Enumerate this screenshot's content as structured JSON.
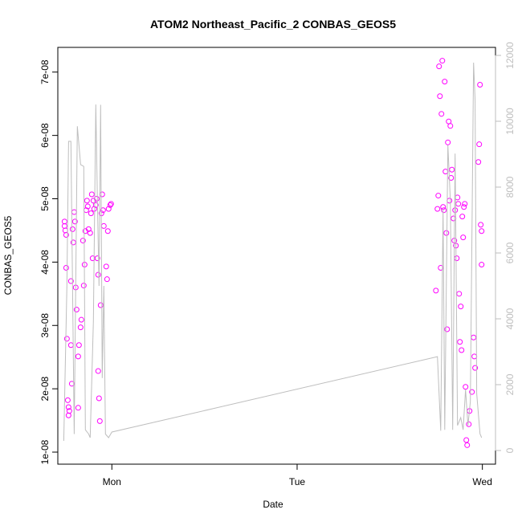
{
  "chart_data": {
    "type": "scatter",
    "title": "ATOM2 Northeast_Pacific_2 CONBAS_GEOS5",
    "x_label": "Date",
    "y_label": "CONBAS_GEOS5",
    "xlim": [
      -7,
      49.7
    ],
    "xticks": [
      {
        "value": 0,
        "label": "Mon"
      },
      {
        "value": 24,
        "label": "Tue"
      },
      {
        "value": 48,
        "label": "Wed"
      }
    ],
    "ylim": [
      8.1e-09,
      7.39e-08
    ],
    "yticks": [
      {
        "value": 1e-08,
        "label": "1e-08"
      },
      {
        "value": 2e-08,
        "label": "2e-08"
      },
      {
        "value": 3e-08,
        "label": "3e-08"
      },
      {
        "value": 4e-08,
        "label": "4e-08"
      },
      {
        "value": 5e-08,
        "label": "5e-08"
      },
      {
        "value": 6e-08,
        "label": "6e-08"
      },
      {
        "value": 7e-08,
        "label": "7e-08"
      }
    ],
    "y2lim": [
      -415,
      12244
    ],
    "y2ticks": [
      0,
      2000,
      4000,
      6000,
      8000,
      10000,
      12000
    ],
    "series": [
      {
        "type": "scatter",
        "color": "#ff00ff",
        "x": [
          -6.13,
          -6.13,
          -6.03,
          -5.92,
          -5.92,
          -5.82,
          -5.71,
          -5.61,
          -5.61,
          -5.51,
          -5.3,
          -5.3,
          -5.19,
          -5.09,
          -4.99,
          -4.88,
          -4.78,
          -4.68,
          -4.57,
          -4.36,
          -4.36,
          -4.26,
          -4.05,
          -3.95,
          -3.74,
          -3.64,
          -3.53,
          -3.43,
          -3.32,
          -3.22,
          -3.12,
          -3.01,
          -2.81,
          -2.7,
          -2.6,
          -2.49,
          -2.39,
          -2.29,
          -2.08,
          -1.97,
          -1.87,
          -1.77,
          -1.77,
          -1.66,
          -1.56,
          -1.45,
          -1.35,
          -1.25,
          -1.14,
          -1.04,
          -0.73,
          -0.62,
          -0.52,
          -0.42,
          -0.21,
          -0.1,
          41.98,
          42.18,
          42.29,
          42.39,
          42.5,
          42.6,
          42.7,
          42.81,
          42.91,
          43.01,
          43.12,
          43.22,
          43.33,
          43.43,
          43.53,
          43.64,
          43.74,
          43.85,
          43.95,
          44.05,
          44.26,
          44.36,
          44.47,
          44.57,
          44.68,
          44.78,
          44.88,
          44.99,
          45.09,
          45.2,
          45.3,
          45.4,
          45.51,
          45.61,
          45.72,
          45.82,
          45.92,
          46.03,
          46.24,
          46.34,
          46.65,
          46.86,
          46.96,
          47.06,
          47.48,
          47.59,
          47.69,
          47.79,
          47.9,
          47.9
        ],
        "values": [
          4.64e-08,
          4.57e-08,
          4.5e-08,
          4.43e-08,
          3.91e-08,
          2.79e-08,
          1.82e-08,
          1.71e-08,
          1.58e-08,
          1.65e-08,
          3.7e-08,
          2.69e-08,
          2.08e-08,
          4.52e-08,
          4.31e-08,
          4.79e-08,
          4.64e-08,
          3.6e-08,
          3.25e-08,
          2.51e-08,
          1.7e-08,
          2.69e-08,
          2.97e-08,
          3.09e-08,
          4.34e-08,
          3.63e-08,
          3.96e-08,
          4.49e-08,
          4.82e-08,
          4.97e-08,
          4.88e-08,
          4.52e-08,
          4.46e-08,
          4.77e-08,
          5.07e-08,
          4.06e-08,
          4.97e-08,
          4.84e-08,
          4.9e-08,
          5e-08,
          4.06e-08,
          3.8e-08,
          2.28e-08,
          1.85e-08,
          1.49e-08,
          3.32e-08,
          4.77e-08,
          5.07e-08,
          4.82e-08,
          4.57e-08,
          3.93e-08,
          3.73e-08,
          4.49e-08,
          4.84e-08,
          4.9e-08,
          4.92e-08,
          3.55e-08,
          4.84e-08,
          5.05e-08,
          7.09e-08,
          6.62e-08,
          3.91e-08,
          6.34e-08,
          7.18e-08,
          4.87e-08,
          4.82e-08,
          6.85e-08,
          5.43e-08,
          4.46e-08,
          2.94e-08,
          5.89e-08,
          6.22e-08,
          4.97e-08,
          6.15e-08,
          5.33e-08,
          5.46e-08,
          4.69e-08,
          4.34e-08,
          4.82e-08,
          4.26e-08,
          4.06e-08,
          5.02e-08,
          4.92e-08,
          3.5e-08,
          2.74e-08,
          3.3e-08,
          2.61e-08,
          4.72e-08,
          4.39e-08,
          4.87e-08,
          4.92e-08,
          2.03e-08,
          1.19e-08,
          1.11e-08,
          1.44e-08,
          1.65e-08,
          1.95e-08,
          2.81e-08,
          2.51e-08,
          2.33e-08,
          5.58e-08,
          5.86e-08,
          6.8e-08,
          4.59e-08,
          4.49e-08,
          3.96e-08
        ]
      },
      {
        "type": "line",
        "color": "#bebebe",
        "axis": "y2",
        "x": [
          -6.23,
          -5.82,
          -5.61,
          -5.3,
          -4.88,
          -4.47,
          -4.05,
          -3.64,
          -3.43,
          -3.01,
          -2.81,
          -2.39,
          -2.08,
          -1.87,
          -1.66,
          -1.45,
          -1.25,
          -1.04,
          -0.83,
          -0.42,
          0,
          42.18,
          42.6,
          42.91,
          43.12,
          43.53,
          43.85,
          44.16,
          44.47,
          44.78,
          45.2,
          45.51,
          45.82,
          46.13,
          46.44,
          46.86,
          47.06,
          47.27,
          47.69,
          47.9
        ],
        "values": [
          293,
          5000,
          9390,
          9390,
          500,
          9850,
          8680,
          8630,
          630,
          500,
          390,
          3930,
          10510,
          7590,
          5000,
          10500,
          2200,
          5000,
          500,
          390,
          560,
          2850,
          600,
          7340,
          630,
          9270,
          7590,
          630,
          9020,
          760,
          1000,
          630,
          1850,
          760,
          1490,
          11780,
          10630,
          1730,
          510,
          390
        ]
      }
    ]
  }
}
